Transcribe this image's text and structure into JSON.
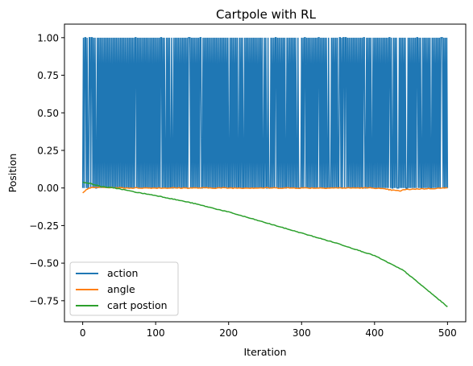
{
  "chart_data": {
    "type": "line",
    "title": "Cartpole with RL",
    "xlabel": "Iteration",
    "ylabel": "Position",
    "xlim": [
      -25,
      525
    ],
    "ylim": [
      -0.89,
      1.09
    ],
    "xticks": [
      0,
      100,
      200,
      300,
      400,
      500
    ],
    "yticks": [
      -0.75,
      -0.5,
      -0.25,
      0.0,
      0.25,
      0.5,
      0.75,
      1.0
    ],
    "xtick_labels": [
      "0",
      "100",
      "200",
      "300",
      "400",
      "500"
    ],
    "ytick_labels": [
      "−0.75",
      "−0.50",
      "−0.25",
      "0.00",
      "0.25",
      "0.50",
      "0.75",
      "1.00"
    ],
    "grid": false,
    "legend_position": "lower-left",
    "series": [
      {
        "name": "action",
        "color": "#1f77b4",
        "pattern": "binary switching between 0 and 1 at nearly every step",
        "x_range": [
          0,
          500
        ],
        "values_set": [
          0,
          1
        ]
      },
      {
        "name": "angle",
        "color": "#ff7f0e",
        "x": [
          0,
          5,
          10,
          20,
          40,
          60,
          100,
          150,
          200,
          250,
          300,
          350,
          400,
          418,
          425,
          435,
          440,
          450,
          470,
          500
        ],
        "y": [
          -0.03,
          -0.01,
          0.0,
          0.005,
          0.002,
          0.0,
          0.0,
          0.0,
          0.0,
          0.0,
          0.0,
          0.0,
          0.0,
          -0.01,
          -0.015,
          -0.02,
          -0.012,
          -0.008,
          -0.005,
          0.0
        ]
      },
      {
        "name": "cart postion",
        "color": "#2ca02c",
        "x": [
          0,
          10,
          25,
          50,
          75,
          100,
          150,
          200,
          250,
          300,
          350,
          400,
          420,
          440,
          460,
          480,
          500
        ],
        "y": [
          0.04,
          0.03,
          0.01,
          -0.005,
          -0.03,
          -0.05,
          -0.1,
          -0.16,
          -0.23,
          -0.3,
          -0.37,
          -0.45,
          -0.5,
          -0.55,
          -0.63,
          -0.71,
          -0.79
        ]
      }
    ]
  }
}
